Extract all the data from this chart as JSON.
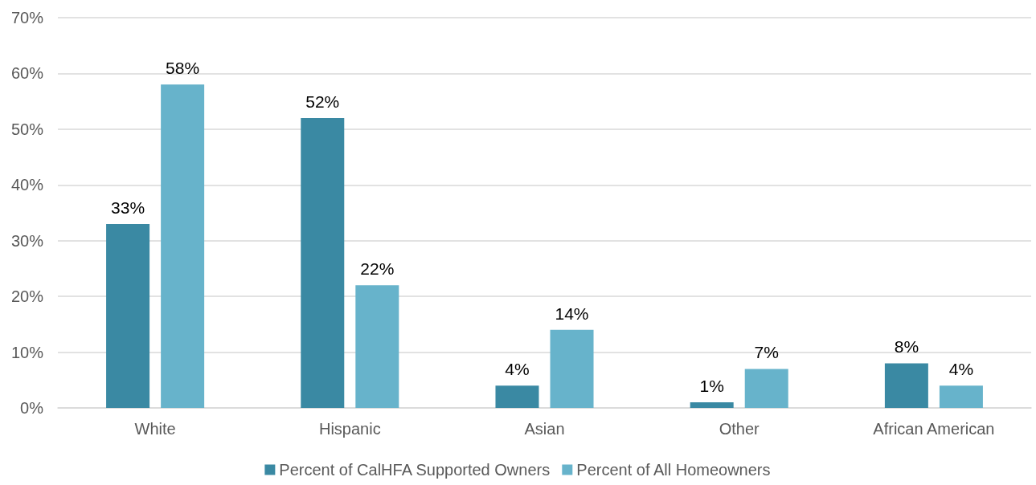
{
  "chart_data": {
    "type": "bar",
    "categories": [
      "White",
      "Hispanic",
      "Asian",
      "Other",
      "African American"
    ],
    "series": [
      {
        "name": "Percent of CalHFA Supported Owners",
        "color": "#3a89a3",
        "values": [
          33,
          52,
          4,
          1,
          8
        ],
        "value_labels": [
          "33%",
          "52%",
          "4%",
          "1%",
          "8%"
        ]
      },
      {
        "name": "Percent of All Homeowners",
        "color": "#67b3cb",
        "values": [
          58,
          22,
          14,
          7,
          4
        ],
        "value_labels": [
          "58%",
          "22%",
          "14%",
          "7%",
          "4%"
        ]
      }
    ],
    "ylim": [
      0,
      70
    ],
    "yticks": [
      {
        "value": 0,
        "label": "0%"
      },
      {
        "value": 10,
        "label": "10%"
      },
      {
        "value": 20,
        "label": "20%"
      },
      {
        "value": 30,
        "label": "30%"
      },
      {
        "value": 40,
        "label": "40%"
      },
      {
        "value": 50,
        "label": "50%"
      },
      {
        "value": 60,
        "label": "60%"
      },
      {
        "value": 70,
        "label": "70%"
      }
    ],
    "grid": "y",
    "legend": "bottom"
  }
}
